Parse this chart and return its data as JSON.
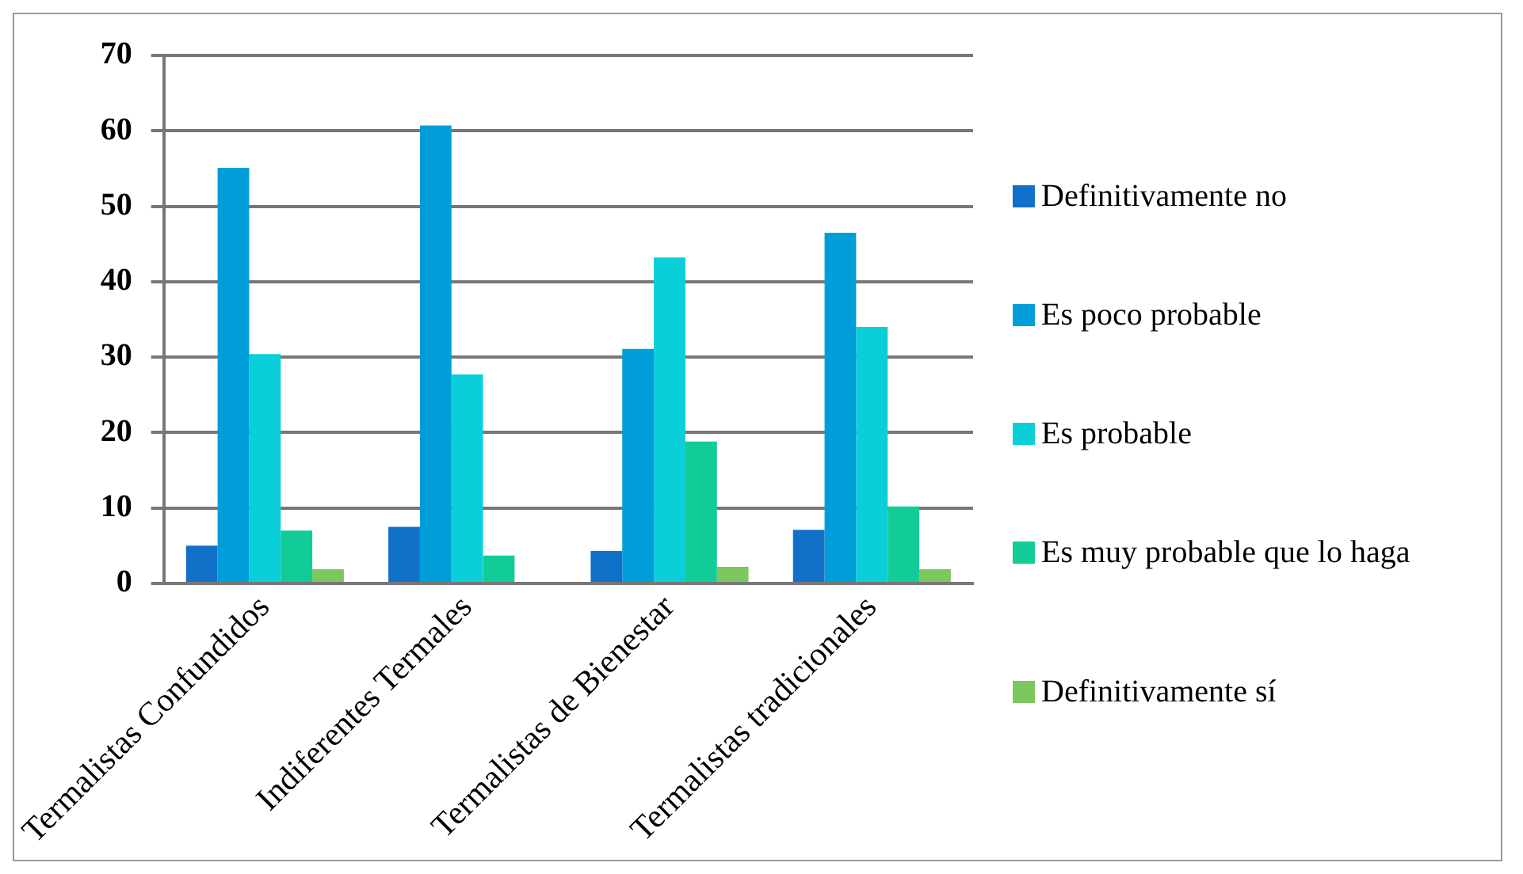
{
  "chart_data": {
    "type": "bar",
    "categories": [
      "Termalistas Confundidos",
      "Indiferentes Termales",
      "Termalistas de Bienestar",
      "Termalistas tradicionales"
    ],
    "series": [
      {
        "name": "Definitivamente no",
        "color": "#1170c8",
        "values": [
          5.0,
          7.5,
          4.3,
          7.1
        ]
      },
      {
        "name": "Es poco probable",
        "color": "#009ed8",
        "values": [
          55.1,
          60.7,
          31.1,
          46.5
        ]
      },
      {
        "name": "Es probable",
        "color": "#0bcfd8",
        "values": [
          30.4,
          27.7,
          43.2,
          34.0
        ]
      },
      {
        "name": "Es muy probable que lo haga",
        "color": "#12cc98",
        "values": [
          7.0,
          3.7,
          18.8,
          10.2
        ]
      },
      {
        "name": "Definitivamente sí",
        "color": "#7cc85e",
        "values": [
          1.9,
          0,
          2.2,
          1.9
        ]
      }
    ],
    "ylim": [
      0,
      70
    ],
    "yticks": [
      0,
      10,
      20,
      30,
      40,
      50,
      60,
      70
    ],
    "grid": "y",
    "legend": "right"
  }
}
